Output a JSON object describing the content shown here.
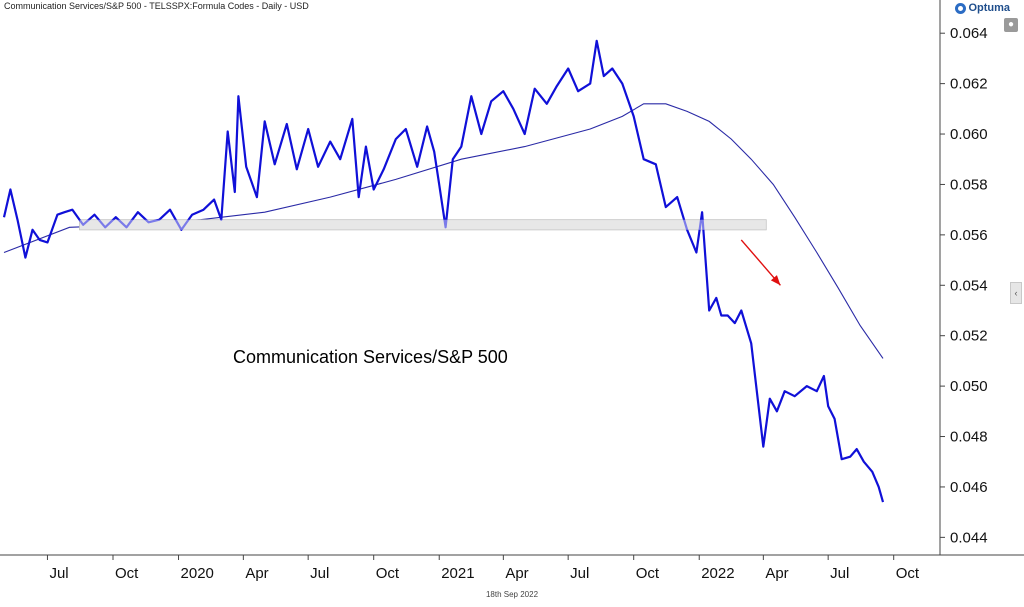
{
  "header": {
    "title": "Communication Services/S&P 500 - TELSSPX:Formula Codes - Daily - USD"
  },
  "brand": {
    "name": "Optuma",
    "icon": "optuma-logo-icon"
  },
  "controls": {
    "lock_icon": "lock-icon",
    "collapse_icon": "chevron-left-icon"
  },
  "footer": {
    "date": "18th Sep 2022"
  },
  "colors": {
    "price": "#1010d8",
    "average": "#2a2aa6",
    "zone": "#d4d4d4",
    "arrow": "#e01010",
    "axis": "#444444"
  },
  "chart_data": {
    "type": "line",
    "title": "Communication Services/S&P 500",
    "ylim": [
      0.0433,
      0.065
    ],
    "y_ticks": [
      "0.064",
      "0.062",
      "0.060",
      "0.058",
      "0.056",
      "0.054",
      "0.052",
      "0.050",
      "0.048",
      "0.046",
      "0.044"
    ],
    "x_ticks": [
      "Jul",
      "Oct",
      "2020",
      "Apr",
      "Jul",
      "Oct",
      "2021",
      "Apr",
      "Jul",
      "Oct",
      "2022",
      "Apr",
      "Jul",
      "Oct"
    ],
    "x_tick_dates": [
      "2019-07-01",
      "2019-10-01",
      "2020-01-01",
      "2020-04-01",
      "2020-07-01",
      "2020-10-01",
      "2021-01-01",
      "2021-04-01",
      "2021-07-01",
      "2021-10-01",
      "2022-01-01",
      "2022-04-01",
      "2022-07-01",
      "2022-10-01"
    ],
    "series": [
      {
        "role": "price",
        "x": [
          "2019-05-01",
          "2019-05-10",
          "2019-05-20",
          "2019-05-31",
          "2019-06-10",
          "2019-06-20",
          "2019-07-01",
          "2019-07-15",
          "2019-07-25",
          "2019-08-05",
          "2019-08-20",
          "2019-09-05",
          "2019-09-20",
          "2019-10-05",
          "2019-10-20",
          "2019-11-05",
          "2019-11-20",
          "2019-12-05",
          "2019-12-20",
          "2020-01-05",
          "2020-01-20",
          "2020-02-05",
          "2020-02-20",
          "2020-03-01",
          "2020-03-10",
          "2020-03-20",
          "2020-03-25",
          "2020-04-05",
          "2020-04-20",
          "2020-05-01",
          "2020-05-15",
          "2020-06-01",
          "2020-06-15",
          "2020-07-01",
          "2020-07-15",
          "2020-08-01",
          "2020-08-15",
          "2020-09-01",
          "2020-09-10",
          "2020-09-20",
          "2020-10-01",
          "2020-10-15",
          "2020-11-01",
          "2020-11-15",
          "2020-12-01",
          "2020-12-15",
          "2020-12-25",
          "2021-01-01",
          "2021-01-10",
          "2021-01-20",
          "2021-02-01",
          "2021-02-15",
          "2021-03-01",
          "2021-03-15",
          "2021-04-01",
          "2021-04-15",
          "2021-05-01",
          "2021-05-15",
          "2021-06-01",
          "2021-06-15",
          "2021-07-01",
          "2021-07-15",
          "2021-08-01",
          "2021-08-10",
          "2021-08-20",
          "2021-09-01",
          "2021-09-15",
          "2021-10-01",
          "2021-10-15",
          "2021-11-01",
          "2021-11-15",
          "2021-12-01",
          "2021-12-15",
          "2021-12-28",
          "2022-01-05",
          "2022-01-15",
          "2022-01-25",
          "2022-02-01",
          "2022-02-10",
          "2022-02-20",
          "2022-03-01",
          "2022-03-15",
          "2022-04-01",
          "2022-04-10",
          "2022-04-20",
          "2022-05-01",
          "2022-05-15",
          "2022-06-01",
          "2022-06-15",
          "2022-06-25",
          "2022-07-01",
          "2022-07-10",
          "2022-07-20",
          "2022-08-01",
          "2022-08-10",
          "2022-08-20",
          "2022-09-01",
          "2022-09-10",
          "2022-09-16"
        ],
        "values": [
          0.0567,
          0.0578,
          0.0566,
          0.0551,
          0.0562,
          0.0558,
          0.0557,
          0.0568,
          0.0569,
          0.057,
          0.0564,
          0.0568,
          0.0563,
          0.0567,
          0.0563,
          0.0569,
          0.0565,
          0.0566,
          0.057,
          0.0562,
          0.0568,
          0.057,
          0.0574,
          0.0566,
          0.0601,
          0.0577,
          0.0615,
          0.0587,
          0.0575,
          0.0605,
          0.0588,
          0.0604,
          0.0586,
          0.0602,
          0.0587,
          0.0597,
          0.059,
          0.0606,
          0.0575,
          0.0595,
          0.0578,
          0.0586,
          0.0598,
          0.0602,
          0.0587,
          0.0603,
          0.0593,
          0.058,
          0.0563,
          0.059,
          0.0595,
          0.0615,
          0.06,
          0.0613,
          0.0617,
          0.061,
          0.06,
          0.0618,
          0.0612,
          0.0619,
          0.0626,
          0.0617,
          0.062,
          0.0637,
          0.0623,
          0.0626,
          0.062,
          0.0607,
          0.059,
          0.0588,
          0.0571,
          0.0575,
          0.0562,
          0.0553,
          0.0569,
          0.053,
          0.0535,
          0.0528,
          0.0528,
          0.0525,
          0.053,
          0.0517,
          0.0476,
          0.0495,
          0.049,
          0.0498,
          0.0496,
          0.05,
          0.0498,
          0.0504,
          0.0492,
          0.0487,
          0.0471,
          0.0472,
          0.0475,
          0.047,
          0.0466,
          0.046,
          0.0454
        ]
      },
      {
        "role": "moving-average",
        "x": [
          "2019-05-01",
          "2019-08-01",
          "2019-11-01",
          "2020-02-01",
          "2020-05-01",
          "2020-08-01",
          "2020-11-01",
          "2021-02-01",
          "2021-05-01",
          "2021-08-01",
          "2021-09-15",
          "2021-10-15",
          "2021-11-15",
          "2021-12-15",
          "2022-01-15",
          "2022-02-15",
          "2022-03-15",
          "2022-04-15",
          "2022-05-15",
          "2022-06-15",
          "2022-07-15",
          "2022-08-15",
          "2022-09-16"
        ],
        "values": [
          0.0553,
          0.0563,
          0.0564,
          0.0566,
          0.0569,
          0.0575,
          0.0582,
          0.059,
          0.0595,
          0.0602,
          0.0607,
          0.0612,
          0.0612,
          0.0609,
          0.0605,
          0.0598,
          0.059,
          0.058,
          0.0567,
          0.0553,
          0.0539,
          0.0524,
          0.0511
        ]
      }
    ],
    "annotations": [
      {
        "kind": "support-zone",
        "x_start": "2019-08-15",
        "x_end": "2022-04-05",
        "y_low": 0.0562,
        "y_high": 0.0566
      },
      {
        "kind": "arrow",
        "x_start": "2022-03-01",
        "y_start": 0.0558,
        "x_end": "2022-04-25",
        "y_end": 0.054
      }
    ]
  }
}
